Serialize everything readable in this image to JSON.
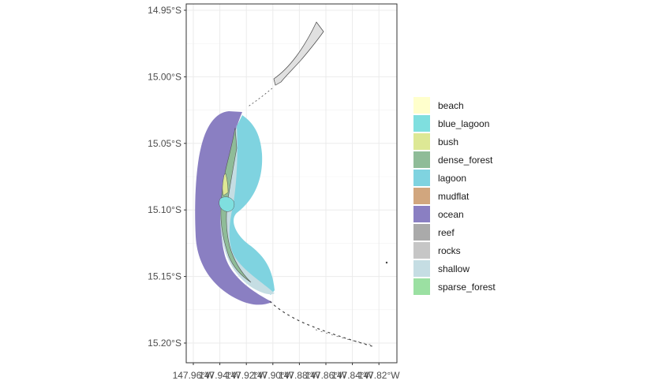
{
  "map": {
    "y_ticks": [
      "14.95°S",
      "15.00°S",
      "15.05°S",
      "15.10°S",
      "15.15°S",
      "15.20°S"
    ],
    "x_ticks": [
      "147.96°W",
      "147.94°W",
      "147.92°W",
      "147.90°W",
      "147.88°W",
      "147.86°W",
      "147.84°W",
      "147.82°W"
    ],
    "x_range": [
      -147.962,
      -147.815
    ],
    "y_range": [
      -15.215,
      -14.945
    ],
    "grid": true
  },
  "legend": {
    "items": [
      {
        "label": "beach",
        "color": "#ffffcc"
      },
      {
        "label": "blue_lagoon",
        "color": "#7fdfdf"
      },
      {
        "label": "bush",
        "color": "#dde895"
      },
      {
        "label": "dense_forest",
        "color": "#8fbc98"
      },
      {
        "label": "lagoon",
        "color": "#7fd3e0"
      },
      {
        "label": "mudflat",
        "color": "#d1a67e"
      },
      {
        "label": "ocean",
        "color": "#8a7fc2"
      },
      {
        "label": "reef",
        "color": "#aaaaaa"
      },
      {
        "label": "rocks",
        "color": "#c6c6c6"
      },
      {
        "label": "shallow",
        "color": "#c5dde3"
      },
      {
        "label": "sparse_forest",
        "color": "#9be0a2"
      }
    ]
  }
}
